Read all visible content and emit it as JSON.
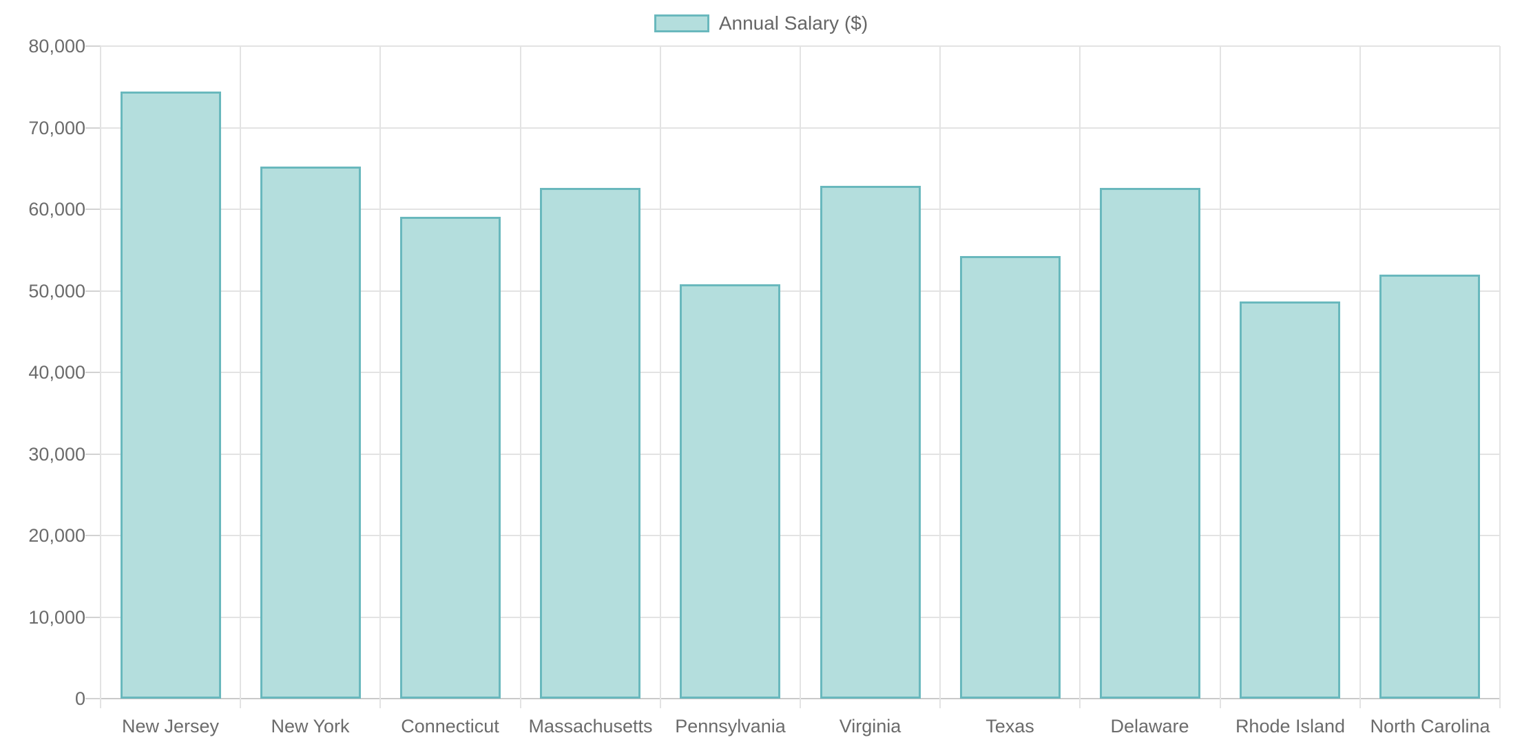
{
  "chart_data": {
    "type": "bar",
    "title": "",
    "categories": [
      "New Jersey",
      "New York",
      "Connecticut",
      "Massachusetts",
      "Pennsylvania",
      "Virginia",
      "Texas",
      "Delaware",
      "Rhode Island",
      "North Carolina"
    ],
    "series": [
      {
        "name": "Annual Salary ($)",
        "values": [
          74400,
          65200,
          59100,
          62600,
          50800,
          62900,
          54300,
          62600,
          48700,
          52000
        ]
      }
    ],
    "xlabel": "",
    "ylabel": "",
    "ylim": [
      0,
      80000
    ],
    "ytick_step": 10000,
    "ytick_labels": [
      "0",
      "10,000",
      "20,000",
      "30,000",
      "40,000",
      "50,000",
      "60,000",
      "70,000",
      "80,000"
    ],
    "grid": true,
    "legend_position": "top-center",
    "colors": {
      "bar_fill": "#b4dedd",
      "bar_border": "#69b8bd",
      "gridline": "#e3e3e3",
      "axis_line": "#c9c9c9",
      "tick": "#d2d2d2",
      "text": "#6b6b6b",
      "background": "#ffffff"
    }
  },
  "legend": {
    "label": "Annual Salary ($)"
  }
}
